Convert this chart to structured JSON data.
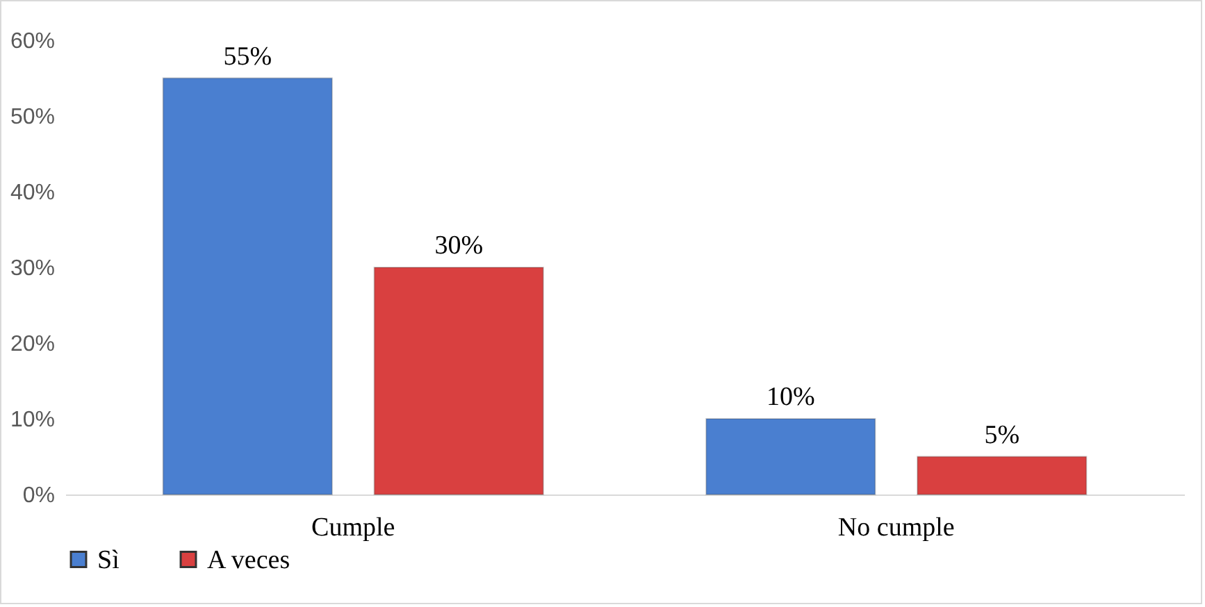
{
  "chart_data": {
    "type": "bar",
    "categories": [
      "Cumple",
      "No cumple"
    ],
    "series": [
      {
        "name": "Sì",
        "color": "#4a7fd0",
        "values": [
          55,
          10
        ],
        "value_labels": [
          "55%",
          "10%"
        ]
      },
      {
        "name": "A veces",
        "color": "#d94040",
        "values": [
          30,
          5
        ],
        "value_labels": [
          "30%",
          "5%"
        ]
      }
    ],
    "ylim": [
      0,
      60
    ],
    "yticks": [
      {
        "value": 0,
        "label": "0%"
      },
      {
        "value": 10,
        "label": "10%"
      },
      {
        "value": 20,
        "label": "20%"
      },
      {
        "value": 30,
        "label": "30%"
      },
      {
        "value": 40,
        "label": "40%"
      },
      {
        "value": 50,
        "label": "50%"
      },
      {
        "value": 60,
        "label": "60%"
      }
    ],
    "grid": false,
    "legend": "bottom"
  }
}
